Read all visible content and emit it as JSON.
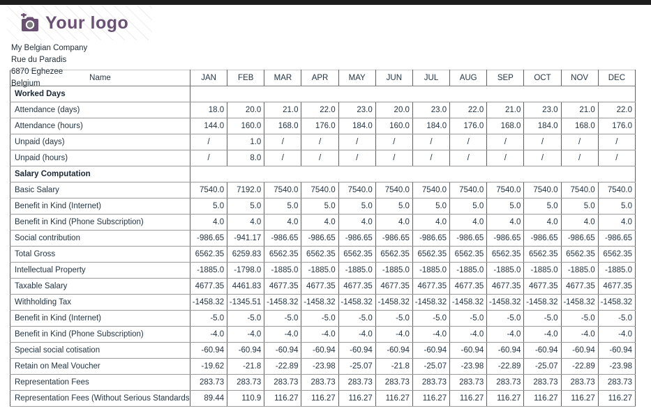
{
  "page": {
    "top_bar_color": "#1d1d1d",
    "accent_purple": "#6a5173"
  },
  "logo": {
    "text": "Your logo",
    "icon": "camera-plus-icon"
  },
  "company": {
    "name": "My Belgian Company",
    "street": "Rue du Paradis",
    "city": "6870 Eghezee",
    "country": "Belgium"
  },
  "table": {
    "name_header": "Name",
    "months": [
      "JAN",
      "FEB",
      "MAR",
      "APR",
      "MAY",
      "JUN",
      "JUL",
      "AUG",
      "SEP",
      "OCT",
      "NOV",
      "DEC"
    ],
    "rows": [
      {
        "type": "section",
        "label": "Worked Days"
      },
      {
        "type": "data",
        "label": "Attendance (days)",
        "values": [
          "18.0",
          "20.0",
          "21.0",
          "22.0",
          "23.0",
          "20.0",
          "23.0",
          "22.0",
          "21.0",
          "23.0",
          "21.0",
          "22.0"
        ]
      },
      {
        "type": "data",
        "label": "Attendance (hours)",
        "values": [
          "144.0",
          "160.0",
          "168.0",
          "176.0",
          "184.0",
          "160.0",
          "184.0",
          "176.0",
          "168.0",
          "184.0",
          "168.0",
          "176.0"
        ]
      },
      {
        "type": "data",
        "label": "Unpaid (days)",
        "values": [
          "/",
          "1.0",
          "/",
          "/",
          "/",
          "/",
          "/",
          "/",
          "/",
          "/",
          "/",
          "/"
        ]
      },
      {
        "type": "data",
        "label": "Unpaid (hours)",
        "values": [
          "/",
          "8.0",
          "/",
          "/",
          "/",
          "/",
          "/",
          "/",
          "/",
          "/",
          "/",
          "/"
        ]
      },
      {
        "type": "section",
        "label": "Salary Computation"
      },
      {
        "type": "data",
        "label": "Basic Salary",
        "values": [
          "7540.0",
          "7192.0",
          "7540.0",
          "7540.0",
          "7540.0",
          "7540.0",
          "7540.0",
          "7540.0",
          "7540.0",
          "7540.0",
          "7540.0",
          "7540.0"
        ]
      },
      {
        "type": "data",
        "label": "Benefit in Kind (Internet)",
        "values": [
          "5.0",
          "5.0",
          "5.0",
          "5.0",
          "5.0",
          "5.0",
          "5.0",
          "5.0",
          "5.0",
          "5.0",
          "5.0",
          "5.0"
        ]
      },
      {
        "type": "data",
        "label": "Benefit in Kind (Phone Subscription)",
        "values": [
          "4.0",
          "4.0",
          "4.0",
          "4.0",
          "4.0",
          "4.0",
          "4.0",
          "4.0",
          "4.0",
          "4.0",
          "4.0",
          "4.0"
        ]
      },
      {
        "type": "data",
        "label": "Social contribution",
        "values": [
          "-986.65",
          "-941.17",
          "-986.65",
          "-986.65",
          "-986.65",
          "-986.65",
          "-986.65",
          "-986.65",
          "-986.65",
          "-986.65",
          "-986.65",
          "-986.65"
        ]
      },
      {
        "type": "data",
        "label": "Total Gross",
        "values": [
          "6562.35",
          "6259.83",
          "6562.35",
          "6562.35",
          "6562.35",
          "6562.35",
          "6562.35",
          "6562.35",
          "6562.35",
          "6562.35",
          "6562.35",
          "6562.35"
        ]
      },
      {
        "type": "data",
        "label": "Intellectual Property",
        "values": [
          "-1885.0",
          "-1798.0",
          "-1885.0",
          "-1885.0",
          "-1885.0",
          "-1885.0",
          "-1885.0",
          "-1885.0",
          "-1885.0",
          "-1885.0",
          "-1885.0",
          "-1885.0"
        ]
      },
      {
        "type": "data",
        "label": "Taxable Salary",
        "values": [
          "4677.35",
          "4461.83",
          "4677.35",
          "4677.35",
          "4677.35",
          "4677.35",
          "4677.35",
          "4677.35",
          "4677.35",
          "4677.35",
          "4677.35",
          "4677.35"
        ]
      },
      {
        "type": "data",
        "label": "Withholding Tax",
        "values": [
          "-1458.32",
          "-1345.51",
          "-1458.32",
          "-1458.32",
          "-1458.32",
          "-1458.32",
          "-1458.32",
          "-1458.32",
          "-1458.32",
          "-1458.32",
          "-1458.32",
          "-1458.32"
        ]
      },
      {
        "type": "data",
        "label": "Benefit in Kind (Internet)",
        "values": [
          "-5.0",
          "-5.0",
          "-5.0",
          "-5.0",
          "-5.0",
          "-5.0",
          "-5.0",
          "-5.0",
          "-5.0",
          "-5.0",
          "-5.0",
          "-5.0"
        ]
      },
      {
        "type": "data",
        "label": "Benefit in Kind (Phone Subscription)",
        "values": [
          "-4.0",
          "-4.0",
          "-4.0",
          "-4.0",
          "-4.0",
          "-4.0",
          "-4.0",
          "-4.0",
          "-4.0",
          "-4.0",
          "-4.0",
          "-4.0"
        ]
      },
      {
        "type": "data",
        "label": "Special social cotisation",
        "values": [
          "-60.94",
          "-60.94",
          "-60.94",
          "-60.94",
          "-60.94",
          "-60.94",
          "-60.94",
          "-60.94",
          "-60.94",
          "-60.94",
          "-60.94",
          "-60.94"
        ]
      },
      {
        "type": "data",
        "label": "Retain on Meal Voucher",
        "values": [
          "-19.62",
          "-21.8",
          "-22.89",
          "-23.98",
          "-25.07",
          "-21.8",
          "-25.07",
          "-23.98",
          "-22.89",
          "-25.07",
          "-22.89",
          "-23.98"
        ]
      },
      {
        "type": "data",
        "label": "Representation Fees",
        "values": [
          "283.73",
          "283.73",
          "283.73",
          "283.73",
          "283.73",
          "283.73",
          "283.73",
          "283.73",
          "283.73",
          "283.73",
          "283.73",
          "283.73"
        ]
      },
      {
        "type": "data",
        "label": "Representation Fees (Without Serious Standards)",
        "values": [
          "89.44",
          "110.9",
          "116.27",
          "116.27",
          "116.27",
          "116.27",
          "116.27",
          "116.27",
          "116.27",
          "116.27",
          "116.27",
          "116.27"
        ]
      }
    ]
  }
}
